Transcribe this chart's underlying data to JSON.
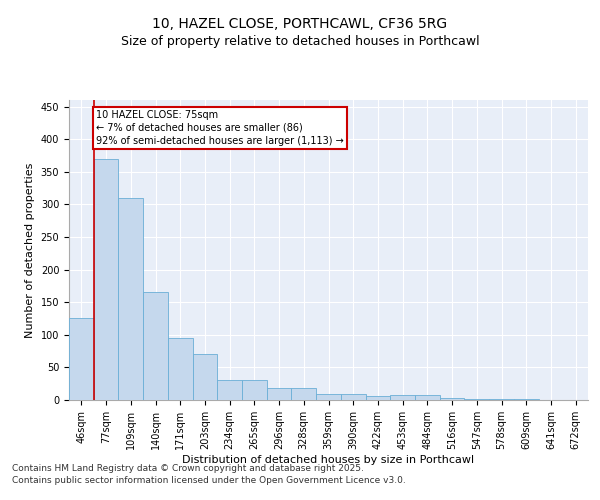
{
  "title_line1": "10, HAZEL CLOSE, PORTHCAWL, CF36 5RG",
  "title_line2": "Size of property relative to detached houses in Porthcawl",
  "xlabel": "Distribution of detached houses by size in Porthcawl",
  "ylabel": "Number of detached properties",
  "categories": [
    "46sqm",
    "77sqm",
    "109sqm",
    "140sqm",
    "171sqm",
    "203sqm",
    "234sqm",
    "265sqm",
    "296sqm",
    "328sqm",
    "359sqm",
    "390sqm",
    "422sqm",
    "453sqm",
    "484sqm",
    "516sqm",
    "547sqm",
    "578sqm",
    "609sqm",
    "641sqm",
    "672sqm"
  ],
  "values": [
    125,
    370,
    310,
    165,
    95,
    70,
    30,
    30,
    18,
    18,
    9,
    9,
    6,
    7,
    8,
    3,
    1,
    1,
    1,
    0,
    0
  ],
  "bar_color": "#c5d8ed",
  "bar_edge_color": "#6aaed6",
  "highlight_color": "#cc0000",
  "annotation_text": "10 HAZEL CLOSE: 75sqm\n← 7% of detached houses are smaller (86)\n92% of semi-detached houses are larger (1,113) →",
  "annotation_box_color": "#cc0000",
  "ylim": [
    0,
    460
  ],
  "yticks": [
    0,
    50,
    100,
    150,
    200,
    250,
    300,
    350,
    400,
    450
  ],
  "plot_bg_color": "#e8eef8",
  "grid_color": "#ffffff",
  "footer_text": "Contains HM Land Registry data © Crown copyright and database right 2025.\nContains public sector information licensed under the Open Government Licence v3.0.",
  "title_fontsize": 10,
  "subtitle_fontsize": 9,
  "label_fontsize": 8,
  "tick_fontsize": 7,
  "annot_fontsize": 7,
  "footer_fontsize": 6.5
}
